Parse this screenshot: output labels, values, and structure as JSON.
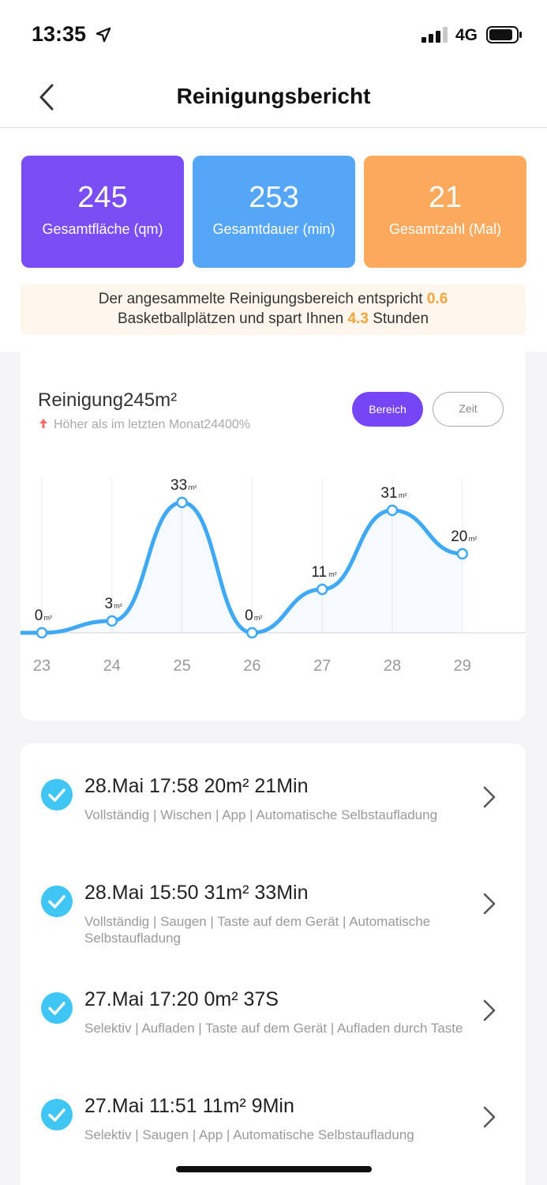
{
  "status_bar": {
    "time": "13:35",
    "network": "4G",
    "location_icon": "location-arrow-icon",
    "signal_icon": "cellular-signal-icon",
    "battery_icon": "battery-icon"
  },
  "header": {
    "title": "Reinigungsbericht",
    "back_icon": "chevron-left-icon"
  },
  "stats": [
    {
      "value": "245",
      "label": "Gesamtfläche (qm)",
      "color": "#7a4df5"
    },
    {
      "value": "253",
      "label": "Gesamtdauer (min)",
      "color": "#55a6f7"
    },
    {
      "value": "21",
      "label": "Gesamtzahl (Mal)",
      "color": "#fba95c"
    }
  ],
  "banner": {
    "text_a": "Der angesammelte Reinigungsbereich entspricht",
    "value_a": "0.6",
    "text_b": "Basketballplätzen und spart Ihnen",
    "value_b": "4.3",
    "text_c": "Stunden",
    "highlight_color": "#f2a43a"
  },
  "chart_section": {
    "title": "Reinigung245m²",
    "comparison": "Höher als im letzten Monat24400%",
    "tab_area": "Bereich",
    "tab_time": "Zeit",
    "accent_color": "#7646f6"
  },
  "chart_data": {
    "type": "line",
    "categories": [
      "23",
      "24",
      "25",
      "26",
      "27",
      "28",
      "29"
    ],
    "values": [
      0,
      3,
      33,
      0,
      11,
      31,
      20
    ],
    "unit": "m²",
    "ylim": [
      0,
      40
    ],
    "grid": "vertical",
    "smooth": true,
    "line_color": "#3fa9f5"
  },
  "records": [
    {
      "title": "28.Mai 17:58 20m² 21Min",
      "details": "Vollständig | Wischen | App | Automatische Selbstaufladung"
    },
    {
      "title": "28.Mai 15:50 31m² 33Min",
      "details": "Vollständig | Saugen | Taste auf dem Gerät | Automatische Selbstaufladung"
    },
    {
      "title": "27.Mai 17:20 0m² 37S",
      "details": "Selektiv | Aufladen | Taste auf dem Gerät | Aufladen durch Taste"
    },
    {
      "title": "27.Mai 11:51 11m² 9Min",
      "details": "Selektiv | Saugen | App | Automatische Selbstaufladung"
    }
  ],
  "record_check_color": "#3fc6f5"
}
